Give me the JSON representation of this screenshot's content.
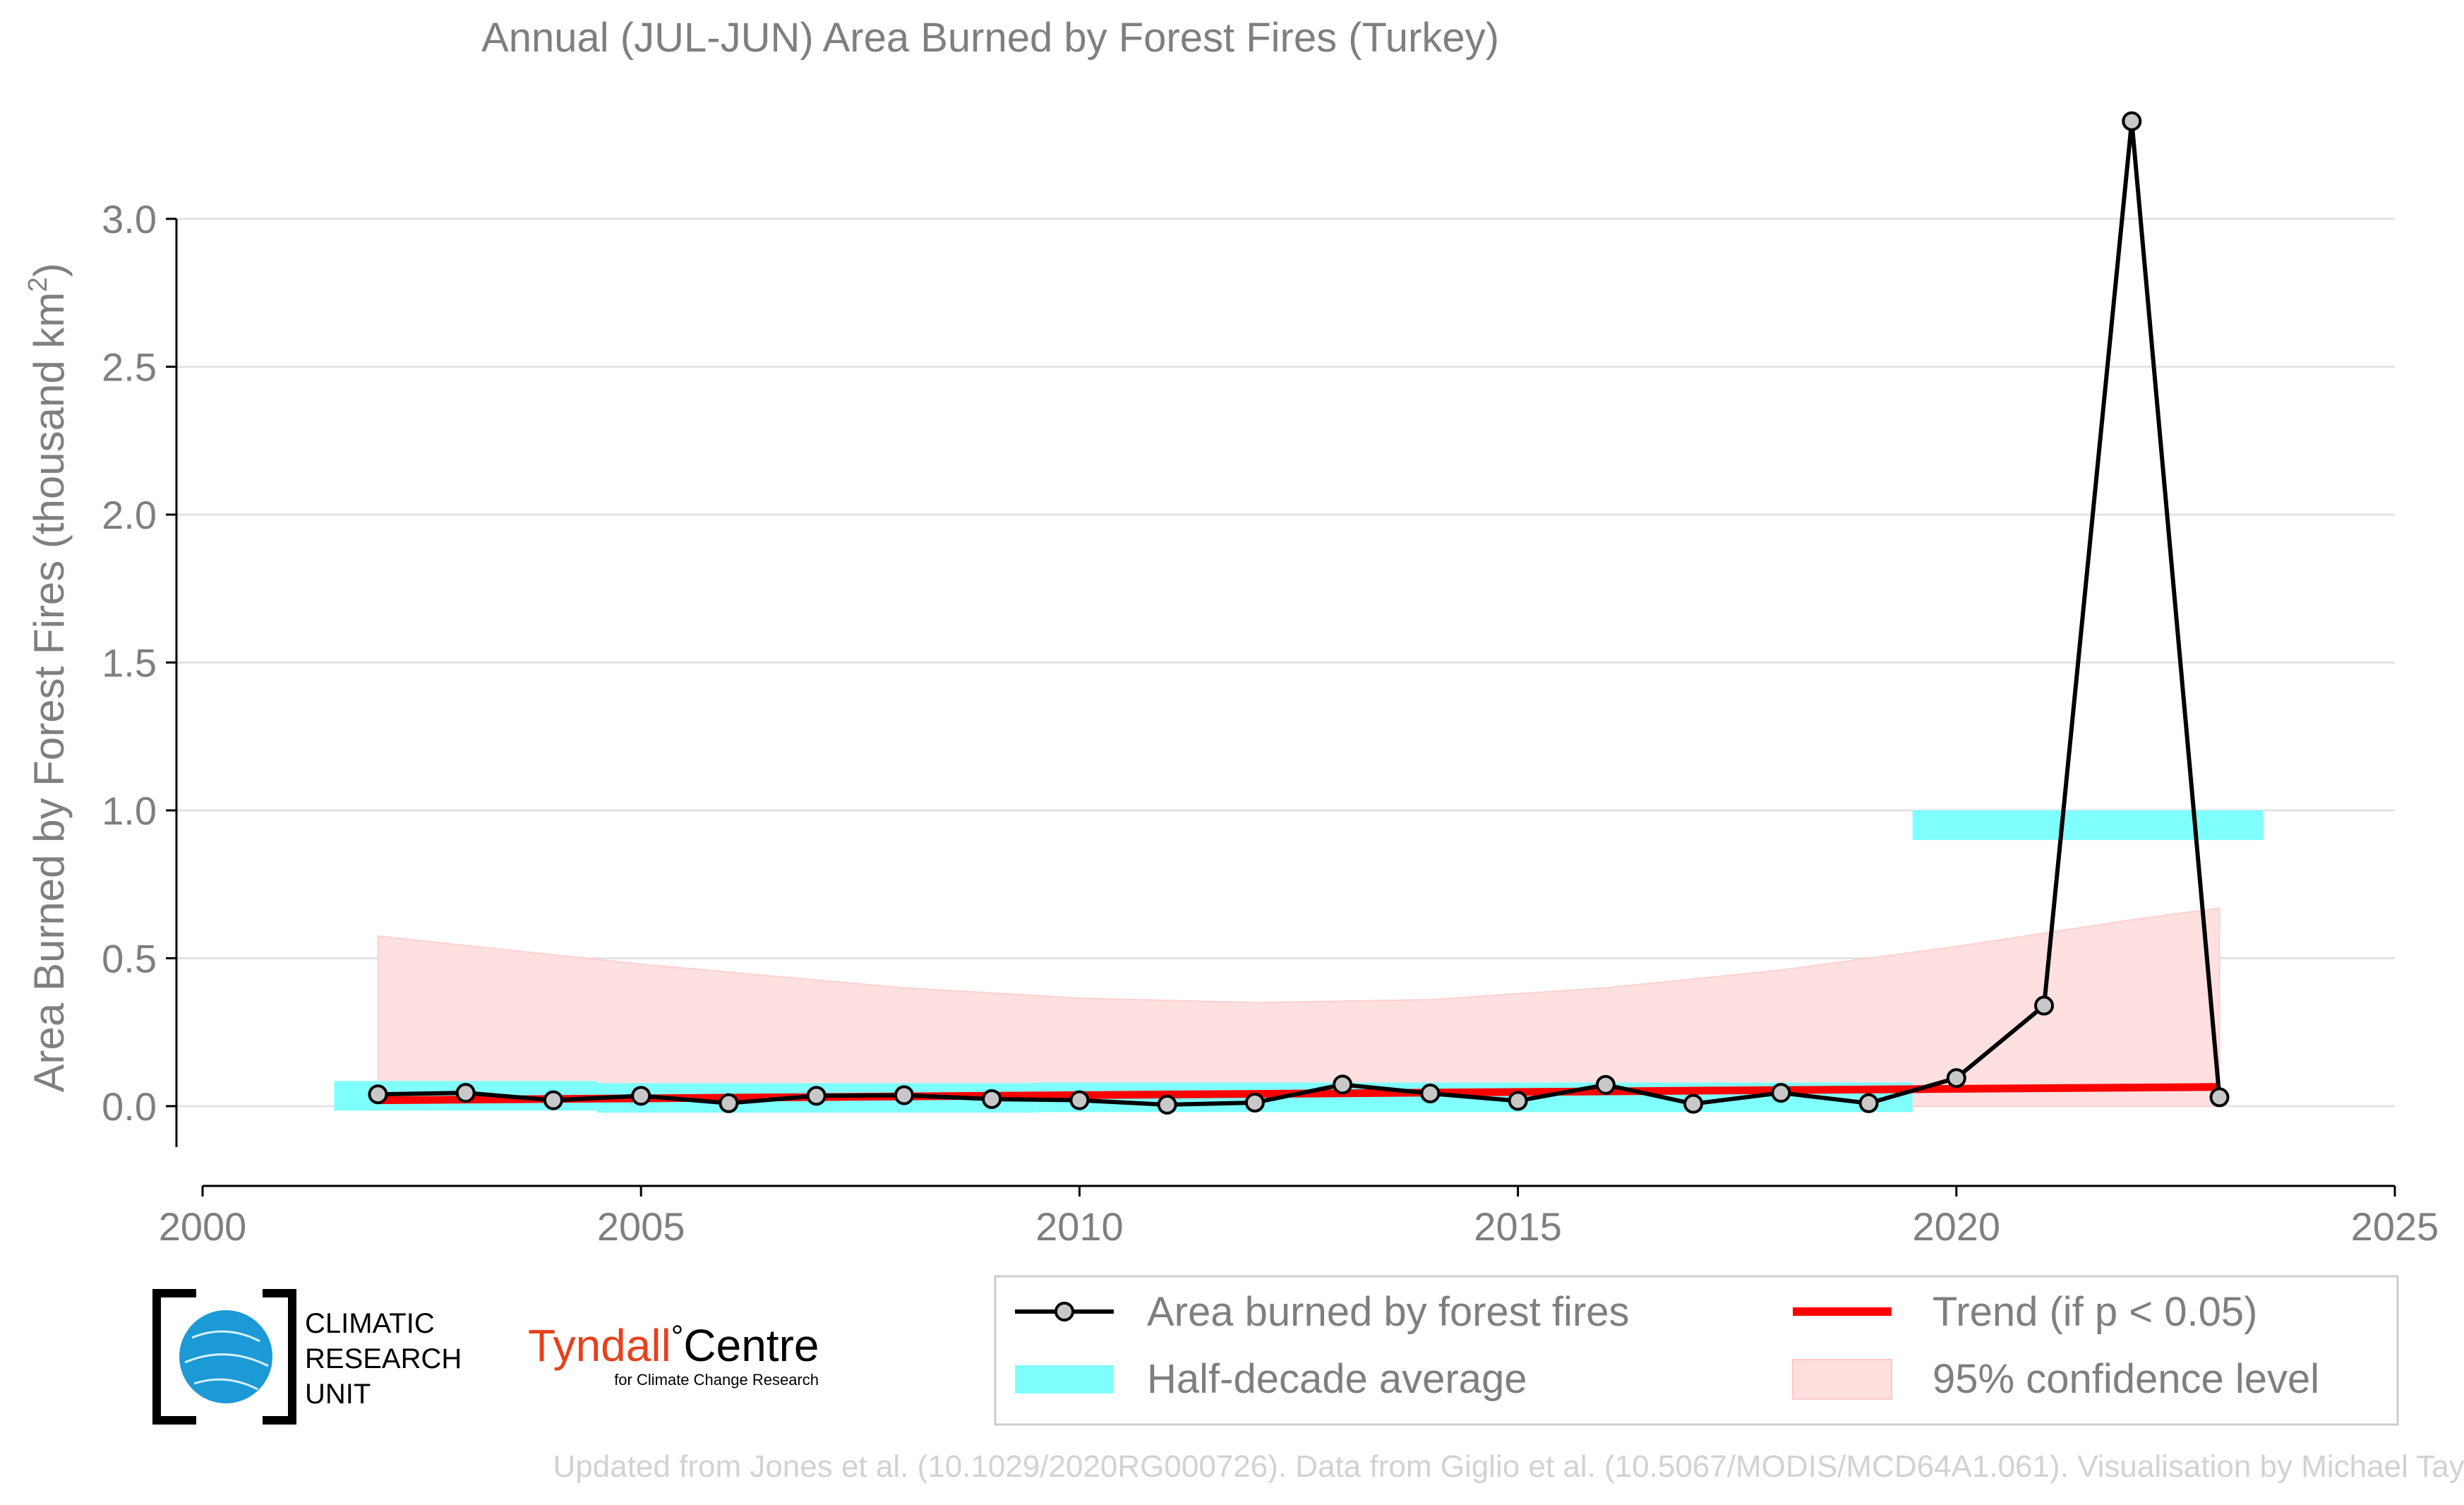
{
  "chart_data": {
    "type": "line",
    "title": "Annual (JUL-JUN) Area Burned by Forest Fires (Turkey)",
    "ylabel_main": "Area Burned by Forest Fires (thousand km",
    "ylabel_sup": "2",
    "ylabel_close": ")",
    "xlabel": "",
    "xlim": [
      2000,
      2025
    ],
    "ylim": [
      -0.27,
      3.4
    ],
    "x_ticks": [
      2000,
      2005,
      2010,
      2015,
      2020,
      2025
    ],
    "x_tick_labels": [
      "2000",
      "2005",
      "2010",
      "2015",
      "2020",
      "2025"
    ],
    "y_ticks": [
      0.0,
      0.5,
      1.0,
      1.5,
      2.0,
      2.5,
      3.0
    ],
    "y_tick_labels": [
      "0.0",
      "0.5",
      "1.0",
      "1.5",
      "2.0",
      "2.5",
      "3.0"
    ],
    "grid": "horizontal",
    "series": [
      {
        "name": "Area burned by forest fires",
        "color": "#000000",
        "marker_fill": "#c8c8c8",
        "x": [
          2002,
          2003,
          2004,
          2005,
          2006,
          2007,
          2008,
          2009,
          2010,
          2011,
          2012,
          2013,
          2014,
          2015,
          2016,
          2017,
          2018,
          2019,
          2020,
          2021,
          2022,
          2023
        ],
        "y": [
          0.04,
          0.045,
          0.02,
          0.035,
          0.01,
          0.035,
          0.037,
          0.024,
          0.02,
          0.005,
          0.012,
          0.073,
          0.043,
          0.018,
          0.072,
          0.008,
          0.045,
          0.01,
          0.095,
          0.34,
          3.33,
          0.03
        ]
      }
    ],
    "half_decade_average": {
      "name": "Half-decade average",
      "color": "#80ffff",
      "periods": [
        {
          "x0": 2001.5,
          "x1": 2004.5,
          "y": 0.035
        },
        {
          "x0": 2004.5,
          "x1": 2009.5,
          "y": 0.028
        },
        {
          "x0": 2009.5,
          "x1": 2014.5,
          "y": 0.03
        },
        {
          "x0": 2014.5,
          "x1": 2019.5,
          "y": 0.03
        },
        {
          "x0": 2019.5,
          "x1": 2023.5,
          "y": 0.95
        }
      ],
      "band_half_height": 0.05
    },
    "trend": {
      "name": "Trend (if p < 0.05)",
      "color": "#ff0000",
      "x": [
        2002,
        2023
      ],
      "y": [
        0.02,
        0.065
      ]
    },
    "confidence": {
      "name": "95% confidence level",
      "color": "#ffd6d6",
      "x": [
        2002,
        2005,
        2008,
        2010,
        2012,
        2014,
        2016,
        2018,
        2020,
        2022,
        2023
      ],
      "upper": [
        0.575,
        0.48,
        0.4,
        0.365,
        0.35,
        0.36,
        0.4,
        0.46,
        0.54,
        0.63,
        0.67
      ],
      "lower": [
        0.0,
        0.0,
        0.0,
        0.0,
        0.0,
        0.0,
        0.0,
        0.0,
        0.0,
        0.0,
        0.0
      ]
    },
    "legend_position": "bottom-right"
  },
  "logos": {
    "cru_line1": "CLIMATIC",
    "cru_line2": "RESEARCH",
    "cru_line3": "UNIT",
    "tyndall_main_red": "Tyndall",
    "tyndall_degree": "°",
    "tyndall_main_black": "Centre",
    "tyndall_sub": "for Climate Change Research"
  },
  "credit": "Updated from Jones et al. (10.1029/2020RG000726). Data from Giglio et al. (10.5067/MODIS/MCD64A1.061). Visualisation by Michael Taylor."
}
